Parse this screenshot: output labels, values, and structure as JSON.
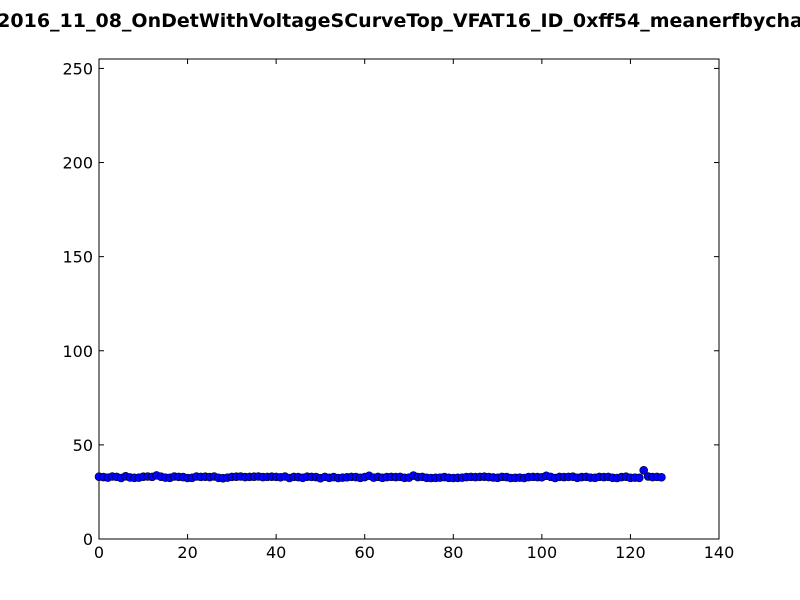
{
  "chart_data": {
    "type": "scatter",
    "title": "2016_11_08_OnDetWithVoltageSCurveTop_VFAT16_ID_0xff54_meanerfbycha",
    "xlabel": "",
    "ylabel": "",
    "xlim": [
      0,
      140
    ],
    "ylim": [
      0,
      255
    ],
    "xticks": [
      0,
      20,
      40,
      60,
      80,
      100,
      120,
      140
    ],
    "yticks": [
      0,
      50,
      100,
      150,
      200,
      250
    ],
    "grid": false,
    "marker_color": "#0000ff",
    "marker_edge_color": "#000000",
    "series": [
      {
        "x": [
          0,
          1,
          2,
          3,
          4,
          5,
          6,
          7,
          8,
          9,
          10,
          11,
          12,
          13,
          14,
          15,
          16,
          17,
          18,
          19,
          20,
          21,
          22,
          23,
          24,
          25,
          26,
          27,
          28,
          29,
          30,
          31,
          32,
          33,
          34,
          35,
          36,
          37,
          38,
          39,
          40,
          41,
          42,
          43,
          44,
          45,
          46,
          47,
          48,
          49,
          50,
          51,
          52,
          53,
          54,
          55,
          56,
          57,
          58,
          59,
          60,
          61,
          62,
          63,
          64,
          65,
          66,
          67,
          68,
          69,
          70,
          71,
          72,
          73,
          74,
          75,
          76,
          77,
          78,
          79,
          80,
          81,
          82,
          83,
          84,
          85,
          86,
          87,
          88,
          89,
          90,
          91,
          92,
          93,
          94,
          95,
          96,
          97,
          98,
          99,
          100,
          101,
          102,
          103,
          104,
          105,
          106,
          107,
          108,
          109,
          110,
          111,
          112,
          113,
          114,
          115,
          116,
          117,
          118,
          119,
          120,
          121,
          122,
          123,
          124,
          125,
          126,
          127
        ],
        "y": [
          33.1,
          32.9,
          32.6,
          33.2,
          33.0,
          32.4,
          33.3,
          32.7,
          32.5,
          32.6,
          33.1,
          33.2,
          33.0,
          33.8,
          33.1,
          32.6,
          32.5,
          33.2,
          33.0,
          32.9,
          32.4,
          32.5,
          33.2,
          33.0,
          33.1,
          32.9,
          33.2,
          32.5,
          32.3,
          32.6,
          33.0,
          33.1,
          33.2,
          32.9,
          33.0,
          33.1,
          33.2,
          32.9,
          33.0,
          33.1,
          33.0,
          32.8,
          33.2,
          32.4,
          33.0,
          32.9,
          32.5,
          33.1,
          33.0,
          32.9,
          32.3,
          33.0,
          32.5,
          32.9,
          32.4,
          32.6,
          32.8,
          33.0,
          32.9,
          32.5,
          32.9,
          33.6,
          32.6,
          33.0,
          32.5,
          32.9,
          33.0,
          32.9,
          33.0,
          32.5,
          32.6,
          33.7,
          32.9,
          33.0,
          32.5,
          32.4,
          32.5,
          32.6,
          32.9,
          32.5,
          32.4,
          32.5,
          32.6,
          32.9,
          33.0,
          32.9,
          33.0,
          33.1,
          32.9,
          32.7,
          32.5,
          33.0,
          32.9,
          32.4,
          32.5,
          32.6,
          32.4,
          32.9,
          33.0,
          32.9,
          32.8,
          33.6,
          33.0,
          32.4,
          33.0,
          32.9,
          33.0,
          33.1,
          32.5,
          32.9,
          33.0,
          32.6,
          32.5,
          33.0,
          32.9,
          33.0,
          32.5,
          32.4,
          32.9,
          33.1,
          32.5,
          32.6,
          32.5,
          36.5,
          33.2,
          32.9,
          33.0,
          32.8
        ]
      }
    ]
  }
}
